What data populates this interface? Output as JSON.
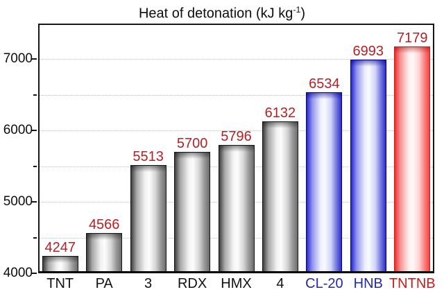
{
  "figure": {
    "background": "#ffffff"
  },
  "chart_data": {
    "type": "bar",
    "title": {
      "main": "Heat of detonation (kJ kg",
      "sup": "-1",
      "end": ")"
    },
    "title_full": "Heat of detonation (kJ kg⁻¹)",
    "categories": [
      "TNT",
      "PA",
      "3",
      "RDX",
      "HMX",
      "4",
      "CL-20",
      "HNB",
      "TNTNB"
    ],
    "values": [
      4247,
      4566,
      5513,
      5700,
      5796,
      6132,
      6534,
      6993,
      7179
    ],
    "bar_colors": [
      "gray",
      "gray",
      "gray",
      "gray",
      "gray",
      "gray",
      "blue",
      "blue",
      "red"
    ],
    "category_label_colors": [
      "#111111",
      "#111111",
      "#111111",
      "#111111",
      "#111111",
      "#111111",
      "#2228a8",
      "#2228a8",
      "#cc1a1a"
    ],
    "value_label_color": "#b42024",
    "xlabel": "",
    "ylabel": "",
    "ylim": [
      4000,
      7500
    ],
    "yticks_major": [
      4000,
      5000,
      6000,
      7000
    ],
    "yticks_minor": [
      4500,
      5500,
      6500
    ],
    "gridlines": [
      4500,
      5000,
      5500,
      6000,
      6500,
      7000
    ],
    "grid_style": "dotted",
    "legend": "none",
    "accent_colors": {
      "gray_bar_border": "#141414",
      "blue_bar_border": "#0000b2",
      "red_bar_border": "#d21c1c",
      "frame": "#161616",
      "gridline": "#bdbdbd"
    }
  }
}
